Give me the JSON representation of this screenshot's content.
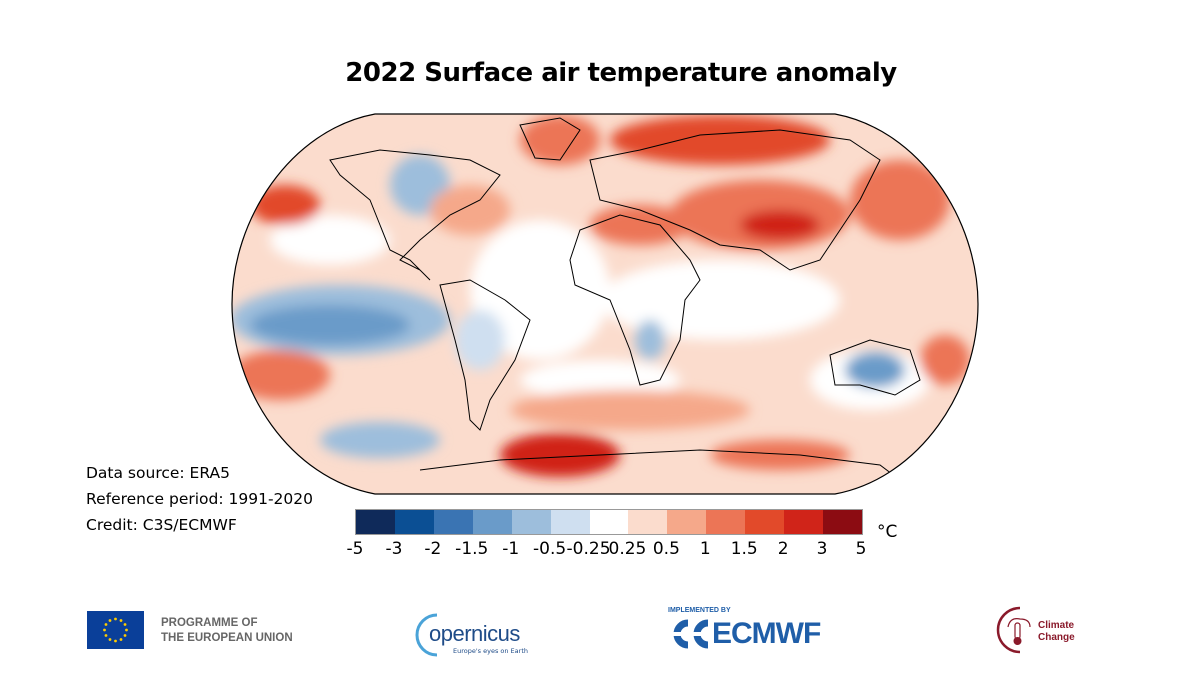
{
  "title": "2022 Surface air temperature anomaly",
  "metadata": {
    "data_source": "Data source: ERA5",
    "reference_period": "Reference period: 1991-2020",
    "credit": "Credit: C3S/ECMWF"
  },
  "colorbar": {
    "unit": "°C",
    "ticks": [
      "-5",
      "-3",
      "-2",
      "-1.5",
      "-1",
      "-0.5",
      "-0.25",
      "0.25",
      "0.5",
      "1",
      "1.5",
      "2",
      "3",
      "5"
    ],
    "colors": [
      "#0f2a5a",
      "#0b4f94",
      "#3a74b3",
      "#6a9bc9",
      "#9dbedc",
      "#cfdff0",
      "#ffffff",
      "#fbdccd",
      "#f5a88a",
      "#ec7556",
      "#e24a2a",
      "#d02419",
      "#8c0c12"
    ]
  },
  "footer": {
    "eu_text_1": "PROGRAMME OF",
    "eu_text_2": "THE EUROPEAN UNION",
    "copernicus_name": "opernicus",
    "copernicus_tagline": "Europe's eyes on Earth",
    "ecmwf_implemented": "IMPLEMENTED BY",
    "ecmwf_name": "ECMWF",
    "climate_change_1": "Climate",
    "climate_change_2": "Change"
  }
}
